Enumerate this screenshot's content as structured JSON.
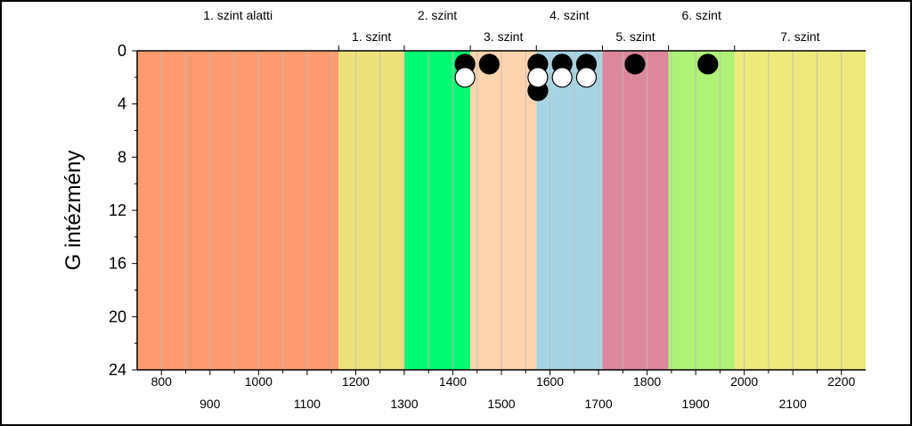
{
  "chart_data": {
    "type": "scatter",
    "title": "",
    "xlabel": "",
    "ylabel": "G intézmény",
    "xlim": [
      750,
      2250
    ],
    "ylim": [
      0,
      24
    ],
    "y_inverted": true,
    "x_ticks_row1": [
      800,
      1000,
      1200,
      1400,
      1600,
      1800,
      2000,
      2200
    ],
    "x_ticks_row2": [
      900,
      1100,
      1300,
      1500,
      1700,
      1900,
      2100
    ],
    "y_ticks": [
      0,
      4,
      8,
      12,
      16,
      20,
      24
    ],
    "grid": "vertical",
    "bands": [
      {
        "label": "1. szint alatti",
        "from": 750,
        "to": 1165,
        "color": "#fd9a70",
        "label_row": "top"
      },
      {
        "label": "1. szint",
        "from": 1165,
        "to": 1300,
        "color": "#ede17b",
        "label_row": "bottom"
      },
      {
        "label": "2. szint",
        "from": 1300,
        "to": 1436,
        "color": "#00fa72",
        "label_row": "top"
      },
      {
        "label": "3. szint",
        "from": 1436,
        "to": 1572,
        "color": "#fdd4ae",
        "label_row": "bottom"
      },
      {
        "label": "4. szint",
        "from": 1572,
        "to": 1708,
        "color": "#a7d4e3",
        "label_row": "top"
      },
      {
        "label": "5. szint",
        "from": 1708,
        "to": 1844,
        "color": "#dc879b",
        "label_row": "bottom"
      },
      {
        "label": "6. szint",
        "from": 1844,
        "to": 1980,
        "color": "#aef276",
        "label_row": "top"
      },
      {
        "label": "7. szint",
        "from": 1980,
        "to": 2250,
        "color": "#ede97b",
        "label_row": "bottom"
      }
    ],
    "series": [
      {
        "marker": "filled",
        "color": "#000000",
        "points": [
          {
            "x": 1425,
            "y": 1
          },
          {
            "x": 1475,
            "y": 1
          },
          {
            "x": 1575,
            "y": 1
          },
          {
            "x": 1575,
            "y": 3
          },
          {
            "x": 1625,
            "y": 1
          },
          {
            "x": 1675,
            "y": 1
          },
          {
            "x": 1775,
            "y": 1
          },
          {
            "x": 1925,
            "y": 1
          }
        ]
      },
      {
        "marker": "open",
        "color": "#ffffff",
        "points": [
          {
            "x": 1425,
            "y": 2
          },
          {
            "x": 1575,
            "y": 2
          },
          {
            "x": 1625,
            "y": 2
          },
          {
            "x": 1675,
            "y": 2
          }
        ]
      }
    ]
  }
}
